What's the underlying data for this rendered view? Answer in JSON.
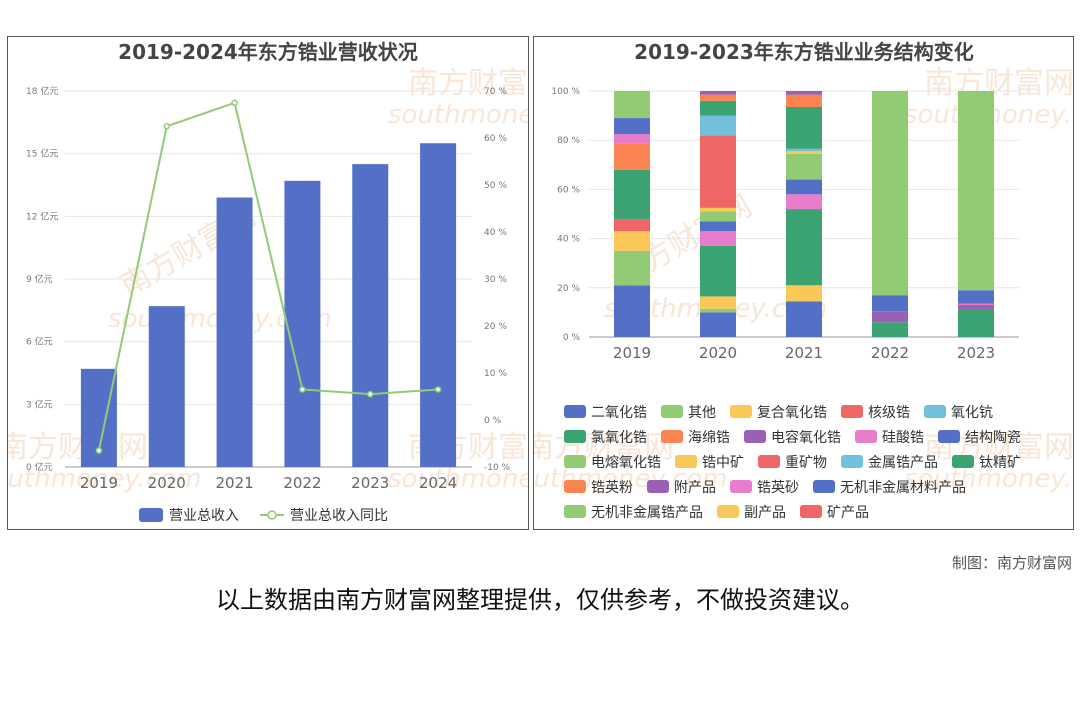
{
  "footer": {
    "credit": "制图：南方财富网",
    "disclaimer": "以上数据由南方财富网整理提供，仅供参考，不做投资建议。"
  },
  "watermark": {
    "text": "南方财富网",
    "sub": "southmoney.com"
  },
  "chart_data": [
    {
      "type": "bar",
      "title": "2019-2024年东方锆业营收状况",
      "categories": [
        "2019",
        "2020",
        "2021",
        "2022",
        "2023",
        "2024"
      ],
      "y_left": {
        "ticks": [
          "0 亿元",
          "3 亿元",
          "6 亿元",
          "9 亿元",
          "12 亿元",
          "15 亿元",
          "18 亿元"
        ],
        "range": [
          0,
          18
        ]
      },
      "y_right": {
        "ticks": [
          "-10 %",
          "0 %",
          "10 %",
          "20 %",
          "30 %",
          "40 %",
          "50 %",
          "60 %",
          "70 %"
        ],
        "range": [
          -10,
          70
        ]
      },
      "grid": true,
      "legend_position": "bottom",
      "series": [
        {
          "name": "营业总收入",
          "kind": "bar",
          "axis": "left",
          "color": "#5470c6",
          "values": [
            4.7,
            7.7,
            12.9,
            13.7,
            14.5,
            15.5
          ]
        },
        {
          "name": "营业总收入同比",
          "kind": "line",
          "axis": "right",
          "color": "#91cc75",
          "values": [
            -6.5,
            62.5,
            67.5,
            6.5,
            5.5,
            6.5
          ]
        }
      ]
    },
    {
      "type": "bar",
      "stacked": true,
      "title": "2019-2023年东方锆业业务结构变化",
      "categories": [
        "2019",
        "2020",
        "2021",
        "2022",
        "2023"
      ],
      "y_ticks": [
        "0 %",
        "20 %",
        "40 %",
        "60 %",
        "80 %",
        "100 %"
      ],
      "ylim": [
        0,
        100
      ],
      "grid": true,
      "legend_position": "bottom",
      "series": [
        {
          "name": "二氧化锆",
          "color": "#5470c6",
          "values": [
            21,
            10,
            14.5,
            0,
            0
          ]
        },
        {
          "name": "其他",
          "color": "#91cc75",
          "values": [
            0,
            1.5,
            0,
            0,
            0
          ]
        },
        {
          "name": "复合氧化锆",
          "color": "#fac858",
          "values": [
            0,
            5,
            6.5,
            0,
            0
          ]
        },
        {
          "name": "核级锆",
          "color": "#ee6666",
          "values": [
            0,
            0,
            0,
            0,
            0
          ]
        },
        {
          "name": "氧化钪",
          "color": "#73c0de",
          "values": [
            0,
            0,
            0,
            0,
            0
          ]
        },
        {
          "name": "氯氧化锆",
          "color": "#3ba272",
          "values": [
            0,
            20.5,
            31,
            6,
            11
          ]
        },
        {
          "name": "海绵锆",
          "color": "#fc8452",
          "values": [
            0,
            0,
            0,
            0,
            0
          ]
        },
        {
          "name": "电容氧化锆",
          "color": "#9a60b4",
          "values": [
            0,
            0,
            0,
            4.5,
            2
          ]
        },
        {
          "name": "硅酸锆",
          "color": "#ea7ccc",
          "values": [
            0,
            6,
            6,
            0,
            0.5
          ]
        },
        {
          "name": "结构陶瓷",
          "color": "#5470c6",
          "values": [
            0,
            4,
            6,
            6.5,
            5.5
          ]
        },
        {
          "name": "电熔氧化锆",
          "color": "#91cc75",
          "values": [
            14,
            4,
            10.5,
            0,
            0
          ]
        },
        {
          "name": "锆中矿",
          "color": "#fac858",
          "values": [
            8,
            1.5,
            1,
            0,
            0
          ]
        },
        {
          "name": "重矿物",
          "color": "#ee6666",
          "values": [
            5,
            29.5,
            0,
            0,
            0
          ]
        },
        {
          "name": "金属锆产品",
          "color": "#73c0de",
          "values": [
            0,
            8,
            1,
            0,
            0
          ]
        },
        {
          "name": "钛精矿",
          "color": "#3ba272",
          "values": [
            20,
            6,
            17,
            0,
            0
          ]
        },
        {
          "name": "锆英粉",
          "color": "#fc8452",
          "values": [
            10.5,
            2.5,
            5,
            0,
            0
          ]
        },
        {
          "name": "附产品",
          "color": "#9a60b4",
          "values": [
            0,
            1.5,
            1.5,
            0,
            0
          ]
        },
        {
          "name": "锆英砂",
          "color": "#ea7ccc",
          "values": [
            4,
            0,
            0,
            0,
            0
          ]
        },
        {
          "name": "无机非金属材料产品",
          "color": "#5470c6",
          "values": [
            6.5,
            0,
            0,
            0,
            0
          ]
        },
        {
          "name": "无机非金属锆产品",
          "color": "#91cc75",
          "values": [
            11,
            0,
            0,
            83,
            81
          ]
        },
        {
          "name": "副产品",
          "color": "#fac858",
          "values": [
            0,
            0,
            0,
            0,
            0
          ]
        },
        {
          "name": "矿产品",
          "color": "#ee6666",
          "values": [
            0,
            0,
            0,
            0,
            0
          ]
        }
      ]
    }
  ]
}
